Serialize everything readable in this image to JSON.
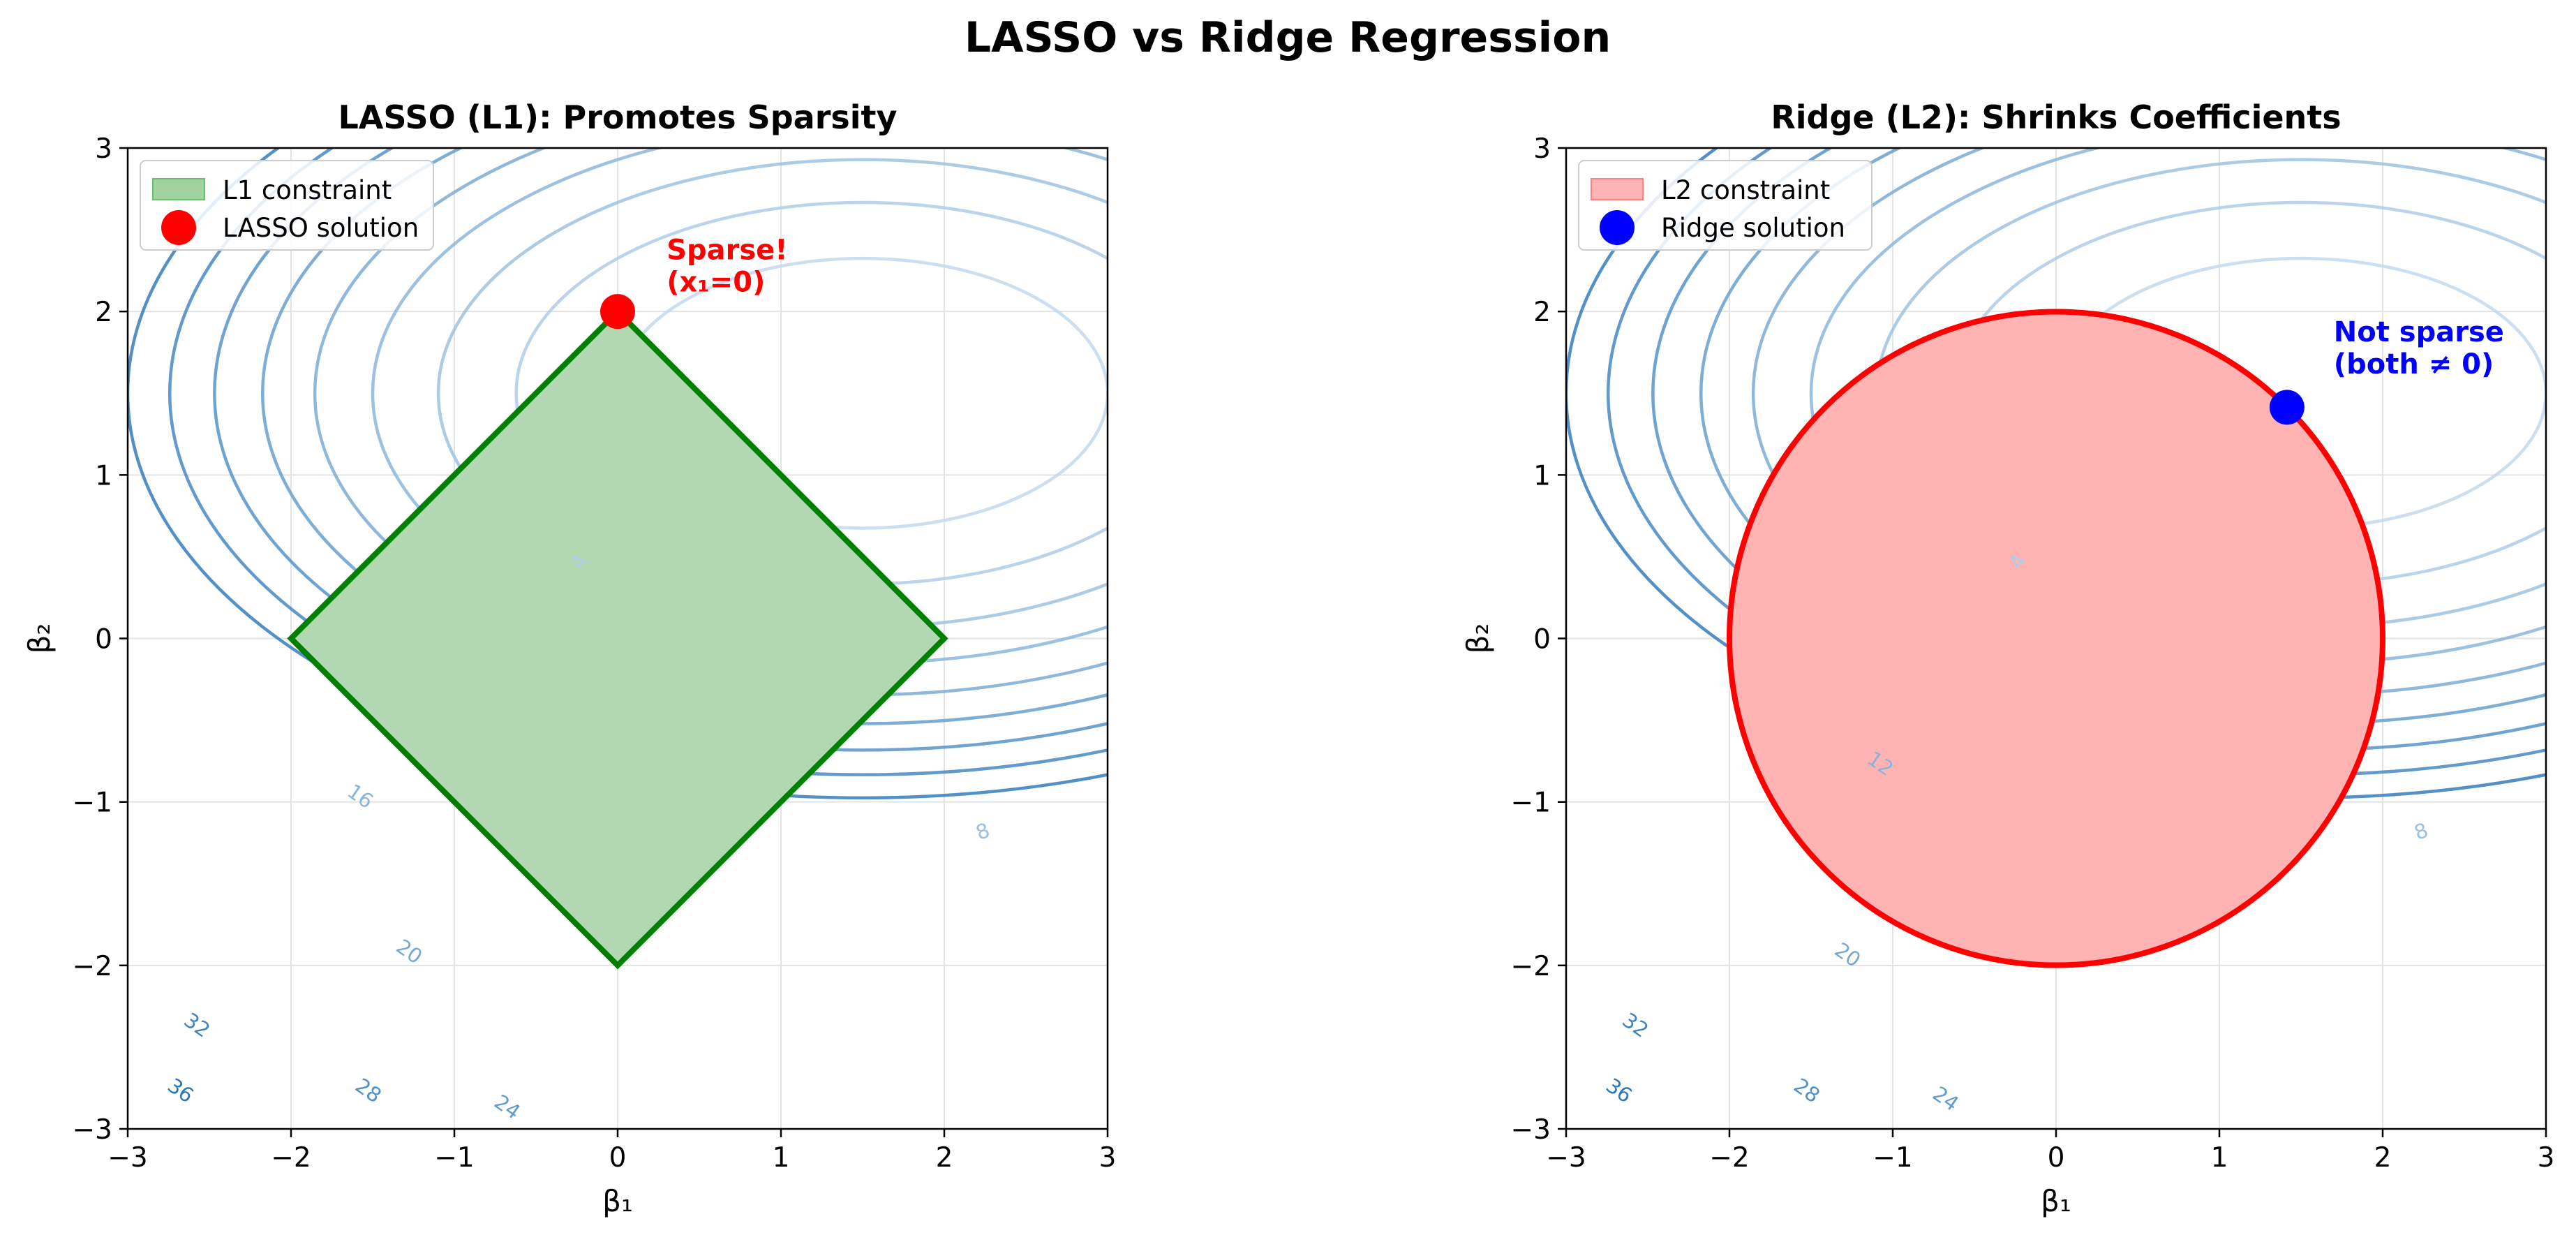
{
  "figure_title": "LASSO vs Ridge Regression",
  "chart_data": [
    {
      "type": "contour",
      "title": "LASSO (L1): Promotes Sparsity",
      "xlabel": "β₁",
      "ylabel": "β₂",
      "xlim": [
        -3,
        3
      ],
      "ylim": [
        -3,
        3
      ],
      "xticks": [
        -3,
        -2,
        -1,
        0,
        1,
        2,
        3
      ],
      "yticks": [
        -3,
        -2,
        -1,
        0,
        1,
        2,
        3
      ],
      "xtick_labels": [
        "−3",
        "−2",
        "−1",
        "0",
        "1",
        "2",
        "3"
      ],
      "ytick_labels": [
        "−3",
        "−2",
        "−1",
        "0",
        "1",
        "2",
        "3"
      ],
      "grid": true,
      "contour": {
        "center": [
          1.5,
          1.5
        ],
        "ry_over_rx": 0.5,
        "levels": [
          4,
          8,
          12,
          16,
          20,
          24,
          28,
          32,
          36
        ],
        "labeled_levels": [
          "4",
          "8",
          "16",
          "20",
          "24",
          "28",
          "32",
          "36"
        ],
        "colormap": "Blues"
      },
      "constraint": {
        "kind": "L1",
        "radius": 2,
        "vertices": [
          [
            0,
            2
          ],
          [
            2,
            0
          ],
          [
            0,
            -2
          ],
          [
            -2,
            0
          ]
        ],
        "fill": "#b2d8b2",
        "edge": "#008000"
      },
      "solution": {
        "x": 0,
        "y": 2,
        "color": "#ff0000"
      },
      "annotation": {
        "lines": [
          "Sparse!",
          "(x₁=0)"
        ],
        "x": 0.3,
        "y": 2.2,
        "color": "#ff0000"
      },
      "legend": {
        "location": "upper-left",
        "entries": [
          {
            "label": "L1 constraint",
            "kind": "patch",
            "color": "#9fd29f",
            "edge": "#6cbf6c"
          },
          {
            "label": "LASSO solution",
            "kind": "marker",
            "color": "#ff0000"
          }
        ]
      }
    },
    {
      "type": "contour",
      "title": "Ridge (L2): Shrinks Coefficients",
      "xlabel": "β₁",
      "ylabel": "β₂",
      "xlim": [
        -3,
        3
      ],
      "ylim": [
        -3,
        3
      ],
      "xticks": [
        -3,
        -2,
        -1,
        0,
        1,
        2,
        3
      ],
      "yticks": [
        -3,
        -2,
        -1,
        0,
        1,
        2,
        3
      ],
      "xtick_labels": [
        "−3",
        "−2",
        "−1",
        "0",
        "1",
        "2",
        "3"
      ],
      "ytick_labels": [
        "−3",
        "−2",
        "−1",
        "0",
        "1",
        "2",
        "3"
      ],
      "grid": true,
      "contour": {
        "center": [
          1.5,
          1.5
        ],
        "ry_over_rx": 0.5,
        "levels": [
          4,
          8,
          12,
          16,
          20,
          24,
          28,
          32,
          36
        ],
        "labeled_levels": [
          "4",
          "8",
          "12",
          "20",
          "24",
          "28",
          "32",
          "36"
        ],
        "colormap": "Blues"
      },
      "constraint": {
        "kind": "L2",
        "radius": 2,
        "fill": "#ffb3b3",
        "edge": "#ff0000"
      },
      "solution": {
        "x": 1.414,
        "y": 1.414,
        "color": "#0000ff"
      },
      "annotation": {
        "lines": [
          "Not sparse",
          "(both ≠ 0)"
        ],
        "x": 1.7,
        "y": 1.7,
        "color": "#0000ff"
      },
      "legend": {
        "location": "upper-left",
        "entries": [
          {
            "label": "L2 constraint",
            "kind": "patch",
            "color": "#ffb3b3",
            "edge": "#ff8080"
          },
          {
            "label": "Ridge solution",
            "kind": "marker",
            "color": "#0000ff"
          }
        ]
      }
    }
  ]
}
